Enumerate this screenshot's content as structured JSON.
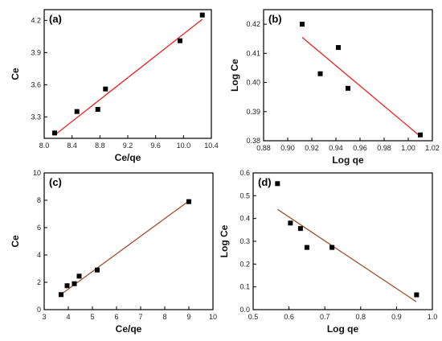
{
  "chart_data": [
    {
      "type": "scatter",
      "panel_label": "(a)",
      "xlabel": "Ce/qe",
      "ylabel": "Ce",
      "xlim": [
        8.0,
        10.4
      ],
      "ylim": [
        3.1,
        4.3
      ],
      "xticks": [
        8.0,
        8.4,
        8.8,
        9.2,
        9.6,
        10.0,
        10.4
      ],
      "xtick_labels": [
        "8.0",
        "8.4",
        "8.8",
        "9.2",
        "9.6",
        "10.0",
        "10.4"
      ],
      "yticks": [
        3.3,
        3.6,
        3.9,
        4.2
      ],
      "ytick_labels": [
        "3.3",
        "3.6",
        "3.9",
        "4.2"
      ],
      "points": [
        [
          8.15,
          3.15
        ],
        [
          8.47,
          3.35
        ],
        [
          8.77,
          3.37
        ],
        [
          8.88,
          3.56
        ],
        [
          9.95,
          4.01
        ],
        [
          10.27,
          4.25
        ]
      ],
      "fit_line": [
        [
          8.15,
          3.13
        ],
        [
          10.27,
          4.21
        ]
      ],
      "fit_color": "#ee2222",
      "marker_color": "#000000"
    },
    {
      "type": "scatter",
      "panel_label": "(b)",
      "xlabel": "Log qe",
      "ylabel": "Log Ce",
      "xlim": [
        0.88,
        1.02
      ],
      "ylim": [
        0.38,
        0.425
      ],
      "xticks": [
        0.88,
        0.9,
        0.92,
        0.94,
        0.96,
        0.98,
        1.0,
        1.02
      ],
      "xtick_labels": [
        "0.88",
        "0.90",
        "0.92",
        "0.94",
        "0.96",
        "0.98",
        "1.00",
        "1.02"
      ],
      "yticks": [
        0.38,
        0.39,
        0.4,
        0.41,
        0.42
      ],
      "ytick_labels": [
        "0.38",
        "0.39",
        "0.40",
        "0.41",
        "0.42"
      ],
      "points": [
        [
          0.912,
          0.42
        ],
        [
          0.927,
          0.403
        ],
        [
          0.942,
          0.412
        ],
        [
          0.95,
          0.398
        ],
        [
          1.01,
          0.382
        ]
      ],
      "fit_line": [
        [
          0.912,
          0.4155
        ],
        [
          1.01,
          0.3815
        ]
      ],
      "fit_color": "#ee2222",
      "marker_color": "#000000"
    },
    {
      "type": "scatter",
      "panel_label": "(c)",
      "xlabel": "Ce/qe",
      "ylabel": "Ce",
      "xlim": [
        3,
        10
      ],
      "ylim": [
        0,
        10
      ],
      "xticks": [
        3,
        4,
        5,
        6,
        7,
        8,
        9,
        10
      ],
      "xtick_labels": [
        "3",
        "4",
        "5",
        "6",
        "7",
        "8",
        "9",
        "10"
      ],
      "yticks": [
        0,
        2,
        4,
        6,
        8,
        10
      ],
      "ytick_labels": [
        "0",
        "2",
        "4",
        "6",
        "8",
        "10"
      ],
      "points": [
        [
          3.7,
          1.1
        ],
        [
          3.95,
          1.75
        ],
        [
          4.25,
          1.9
        ],
        [
          4.45,
          2.45
        ],
        [
          5.2,
          2.9
        ],
        [
          9.0,
          7.9
        ]
      ],
      "fit_line": [
        [
          3.65,
          1.05
        ],
        [
          9.0,
          7.95
        ]
      ],
      "fit_color": "#a0522d",
      "marker_color": "#000000"
    },
    {
      "type": "scatter",
      "panel_label": "(d)",
      "xlabel": "Log qe",
      "ylabel": "Log Ce",
      "xlim": [
        0.5,
        1.0
      ],
      "ylim": [
        0.0,
        0.6
      ],
      "xticks": [
        0.5,
        0.6,
        0.7,
        0.8,
        0.9,
        1.0
      ],
      "xtick_labels": [
        "0.5",
        "0.6",
        "0.7",
        "0.8",
        "0.9",
        "1.0"
      ],
      "yticks": [
        0.0,
        0.1,
        0.2,
        0.3,
        0.4,
        0.5,
        0.6
      ],
      "ytick_labels": [
        "0.0",
        "0.1",
        "0.2",
        "0.3",
        "0.4",
        "0.5",
        "0.6"
      ],
      "points": [
        [
          0.568,
          0.553
        ],
        [
          0.604,
          0.38
        ],
        [
          0.632,
          0.356
        ],
        [
          0.65,
          0.273
        ],
        [
          0.72,
          0.273
        ],
        [
          0.956,
          0.065
        ]
      ],
      "fit_line": [
        [
          0.568,
          0.44
        ],
        [
          0.955,
          0.035
        ]
      ],
      "fit_color": "#a0522d",
      "marker_color": "#000000"
    }
  ]
}
